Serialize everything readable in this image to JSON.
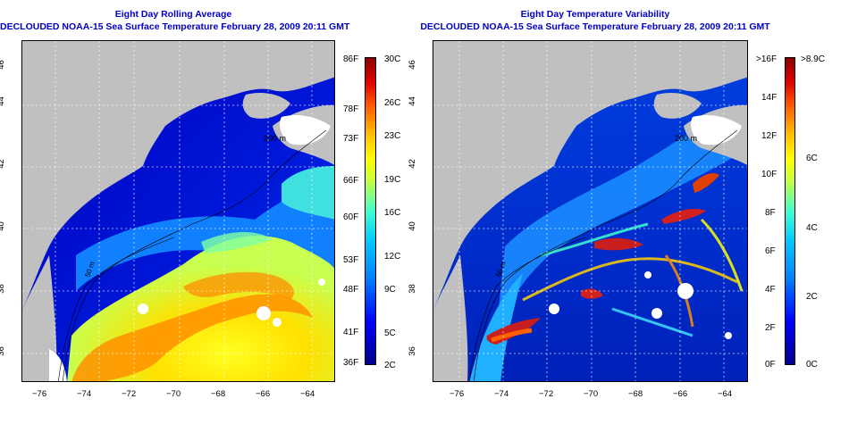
{
  "left_panel": {
    "title": "Eight Day Rolling Average",
    "subtitle": "DECLOUDED NOAA-15 Sea Surface Temperature February 28, 2009 20:11 GMT",
    "colorbar_f": [
      "86F",
      "78F",
      "73F",
      "66F",
      "60F",
      "53F",
      "48F",
      "41F",
      "36F"
    ],
    "colorbar_c": [
      "30C",
      "26C",
      "23C",
      "19C",
      "16C",
      "12C",
      "9C",
      "5C",
      "2C"
    ],
    "isobath_labels": [
      "200 m",
      "50 m"
    ]
  },
  "right_panel": {
    "title": "Eight Day Temperature Variability",
    "subtitle": "DECLOUDED NOAA-15 Sea Surface Temperature February 28, 2009 20:11 GMT",
    "colorbar_f": [
      ">16F",
      "14F",
      "12F",
      "10F",
      "8F",
      "6F",
      "4F",
      "2F",
      "0F"
    ],
    "colorbar_c": [
      ">8.9C",
      "6C",
      "4C",
      "2C",
      "0C"
    ],
    "isobath_labels": [
      "200 m",
      "50 m"
    ]
  },
  "axes": {
    "lon_ticks": [
      "−76",
      "−74",
      "−72",
      "−70",
      "−68",
      "−66",
      "−64"
    ],
    "lat_ticks": [
      "46",
      "44",
      "42",
      "40",
      "38",
      "36"
    ]
  },
  "colors": {
    "land": "#c0c0c0",
    "title": "#0000c8",
    "cold": "#0a1ec8",
    "warm": "#ff8c00"
  }
}
